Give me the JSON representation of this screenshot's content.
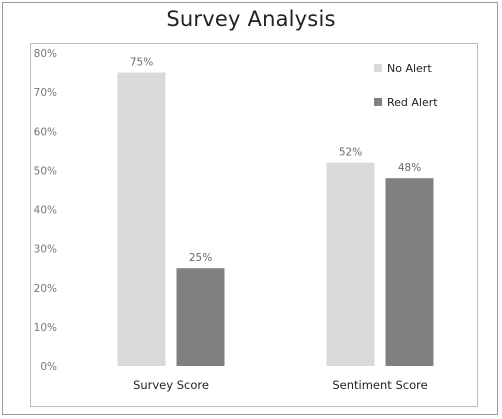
{
  "chart_data": {
    "type": "bar",
    "title": "Survey Analysis",
    "categories": [
      "Survey Score",
      "Sentiment Score"
    ],
    "series": [
      {
        "name": "No Alert",
        "values": [
          75,
          52
        ],
        "value_labels": [
          "75%",
          "52%"
        ]
      },
      {
        "name": "Red Alert",
        "values": [
          25,
          48
        ],
        "value_labels": [
          "25%",
          "48%"
        ]
      }
    ],
    "ylim": [
      0,
      80
    ],
    "yticks": [
      "0%",
      "10%",
      "20%",
      "30%",
      "40%",
      "50%",
      "60%",
      "70%",
      "80%"
    ],
    "xlabel": "",
    "ylabel": "",
    "legend_position": "top-right",
    "grid": false,
    "colors": {
      "No Alert": "#d9d9d9",
      "Red Alert": "#808080"
    }
  }
}
